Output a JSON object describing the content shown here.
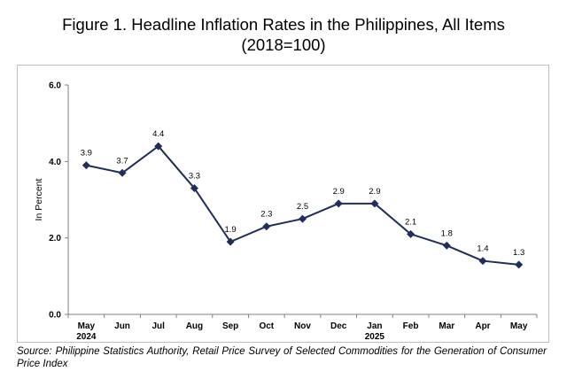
{
  "title_line1": "Figure 1. Headline Inflation Rates in the Philippines, All Items",
  "title_line2": "(2018=100)",
  "source_label": "Source:",
  "source_text": "Philippine Statistics Authority, Retail Price Survey of Selected Commodities for the Generation of Consumer Price Index",
  "chart_data": {
    "type": "line",
    "categories": [
      "May",
      "Jun",
      "Jul",
      "Aug",
      "Sep",
      "Oct",
      "Nov",
      "Dec",
      "Jan",
      "Feb",
      "Mar",
      "Apr",
      "May"
    ],
    "category_sublabels": [
      "2024",
      "",
      "",
      "",
      "",
      "",
      "",
      "",
      "2025",
      "",
      "",
      "",
      ""
    ],
    "series": [
      {
        "values": [
          3.9,
          3.7,
          4.4,
          3.3,
          1.9,
          2.3,
          2.5,
          2.9,
          2.9,
          2.1,
          1.8,
          1.4,
          1.3
        ]
      }
    ],
    "data_labels": [
      "3.9",
      "3.7",
      "4.4",
      "3.3",
      "1.9",
      "2.3",
      "2.5",
      "2.9",
      "2.9",
      "2.1",
      "1.8",
      "1.4",
      "1.3"
    ],
    "ylabel": "In Percent",
    "xlabel": "",
    "ylim": [
      0,
      6
    ],
    "yticks": [
      "0.0",
      "2.0",
      "4.0",
      "6.0"
    ],
    "grid": false,
    "line_color": "#1f2e5a",
    "marker": "diamond"
  }
}
